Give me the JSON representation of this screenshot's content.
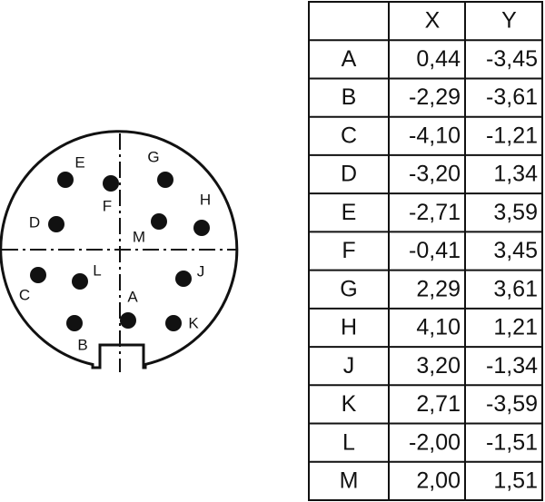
{
  "table": {
    "header": [
      "X",
      "Y"
    ],
    "rows": [
      [
        "A",
        "0,44",
        "-3,45"
      ],
      [
        "B",
        "-2,29",
        "-3,61"
      ],
      [
        "C",
        "-4,10",
        "-1,21"
      ],
      [
        "D",
        "-3,20",
        "1,34"
      ],
      [
        "E",
        "-2,71",
        "3,59"
      ],
      [
        "F",
        "-0,41",
        "3,45"
      ],
      [
        "G",
        "2,29",
        "3,61"
      ],
      [
        "H",
        "4,10",
        "1,21"
      ],
      [
        "J",
        "3,20",
        "-1,34"
      ],
      [
        "K",
        "2,71",
        "-3,59"
      ],
      [
        "L",
        "-2,00",
        "-1,51"
      ],
      [
        "M",
        "2,00",
        "1,51"
      ]
    ]
  }
}
